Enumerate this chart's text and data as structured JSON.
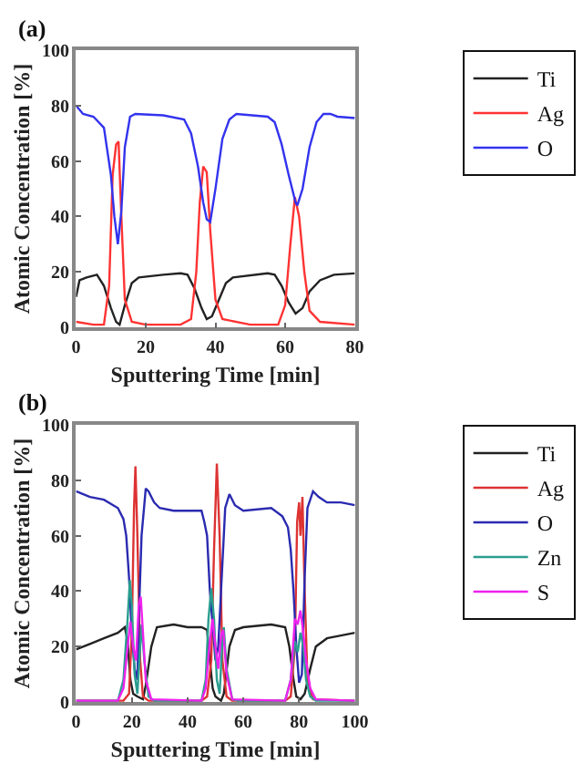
{
  "chart_data": [
    {
      "type": "line",
      "title": "(a)",
      "xlabel": "Sputtering Time [min]",
      "ylabel": "Atomic Concentration [%]",
      "xlim": [
        0,
        80
      ],
      "xticks": [
        0,
        20,
        40,
        60,
        80
      ],
      "ylim": [
        0,
        100
      ],
      "yticks": [
        0,
        20,
        40,
        60,
        80,
        100
      ],
      "grid": false,
      "legend": "top right",
      "series": [
        {
          "name": "Ti",
          "color": "#222222",
          "x": [
            0,
            1,
            3,
            6,
            8,
            10,
            11.5,
            12.5,
            14,
            16,
            18,
            25,
            30,
            32,
            34,
            36,
            37.5,
            39,
            41,
            43,
            45,
            55,
            57,
            59,
            61,
            63,
            65,
            67,
            70,
            74,
            80
          ],
          "values": [
            11,
            17,
            18,
            19,
            15,
            7,
            2,
            1,
            8,
            16,
            18,
            19,
            19.5,
            19,
            14,
            7,
            3,
            4,
            10,
            16,
            18,
            19.5,
            19,
            15,
            9,
            5,
            7,
            13,
            17,
            19,
            19.5
          ]
        },
        {
          "name": "Ag",
          "color": "#ff3333",
          "x": [
            0,
            5,
            8,
            9.5,
            10.5,
            11.5,
            12.2,
            13,
            14,
            16,
            20,
            30,
            33,
            34.5,
            35.5,
            36.5,
            37.5,
            38.5,
            40,
            42,
            50,
            58,
            60,
            61.5,
            62.8,
            64,
            65.5,
            67,
            70,
            80
          ],
          "values": [
            2,
            1,
            1,
            15,
            55,
            66,
            67,
            40,
            10,
            2,
            1,
            1,
            3,
            20,
            45,
            58,
            56,
            35,
            10,
            3,
            1,
            1,
            8,
            30,
            47,
            40,
            20,
            6,
            2,
            1
          ]
        },
        {
          "name": "O",
          "color": "#3333ee",
          "x": [
            0,
            2,
            5,
            8,
            10,
            11,
            12,
            13,
            14,
            15.5,
            17,
            25,
            31,
            33,
            35,
            36.5,
            37.5,
            38.5,
            40,
            42,
            44,
            46,
            55,
            57,
            59,
            61,
            63,
            63.5,
            65,
            67,
            69,
            71,
            73,
            75,
            80
          ],
          "values": [
            80,
            77,
            76,
            72,
            55,
            40,
            30,
            42,
            65,
            76,
            77,
            76.5,
            75,
            70,
            58,
            45,
            39,
            38,
            50,
            68,
            75,
            77,
            76,
            74,
            66,
            55,
            45,
            44,
            50,
            65,
            74,
            77,
            77,
            76,
            75.5
          ]
        }
      ]
    },
    {
      "type": "line",
      "title": "(b)",
      "xlabel": "Sputtering Time [min]",
      "ylabel": "Atomic Concentration [%]",
      "xlim": [
        0,
        100
      ],
      "xticks": [
        0,
        20,
        40,
        60,
        80,
        100
      ],
      "ylim": [
        0,
        100
      ],
      "yticks": [
        0,
        20,
        40,
        60,
        80,
        100
      ],
      "grid": false,
      "legend": "top right",
      "series": [
        {
          "name": "Ti",
          "color": "#222222",
          "x": [
            0,
            5,
            10,
            15,
            17.5,
            18.5,
            19.5,
            20.5,
            22,
            24,
            25,
            27,
            29,
            35,
            40,
            45,
            47,
            48,
            49,
            50,
            52,
            53,
            55,
            57,
            60,
            70,
            75,
            76.5,
            78,
            79,
            80.5,
            82,
            84,
            86,
            90,
            95,
            100
          ],
          "values": [
            19,
            21,
            23,
            25,
            27,
            22,
            8,
            3,
            2,
            1,
            6,
            20,
            27,
            28,
            27,
            27,
            26,
            15,
            5,
            2,
            0.5,
            3,
            20,
            26,
            27,
            28,
            27,
            20,
            8,
            2,
            1,
            3,
            12,
            20,
            23,
            24,
            25
          ]
        },
        {
          "name": "Ag",
          "color": "#dd3333",
          "x": [
            0,
            17,
            19,
            20,
            20.8,
            21.3,
            22,
            23,
            24,
            26,
            45,
            47,
            48.5,
            49.5,
            50.5,
            51.5,
            52.5,
            54,
            56,
            75,
            77,
            78.5,
            79.3,
            80,
            80.5,
            81.2,
            82,
            83,
            85,
            100
          ],
          "values": [
            0.5,
            0.5,
            3,
            25,
            70,
            85,
            60,
            15,
            2,
            0.5,
            0.5,
            2,
            15,
            55,
            86,
            60,
            15,
            2,
            0.5,
            0.5,
            2,
            20,
            65,
            72,
            60,
            74,
            40,
            8,
            1,
            0.5
          ]
        },
        {
          "name": "O",
          "color": "#2a2ab0",
          "x": [
            0,
            5,
            10,
            15,
            17,
            18,
            19,
            20,
            21,
            22,
            22.5,
            23.5,
            25,
            26,
            28,
            30,
            35,
            45,
            46,
            47,
            48,
            49,
            50,
            51,
            52,
            53.5,
            55,
            57,
            60,
            70,
            74,
            76,
            77,
            78,
            79,
            80,
            81,
            82,
            83,
            85,
            87,
            90,
            95,
            100
          ],
          "values": [
            76,
            74,
            73,
            70,
            66,
            60,
            45,
            25,
            12,
            8,
            30,
            60,
            77,
            76,
            72,
            70,
            69,
            69,
            65,
            60,
            40,
            28,
            15,
            20,
            40,
            70,
            75,
            71,
            69,
            70,
            67,
            63,
            55,
            40,
            20,
            7,
            10,
            45,
            70,
            76,
            74,
            72,
            72,
            71
          ]
        },
        {
          "name": "Zn",
          "color": "#2a9d8f",
          "x": [
            0,
            15,
            17,
            18.5,
            19.3,
            20,
            21,
            22,
            23,
            23.5,
            24.5,
            26,
            28,
            45,
            46.5,
            47.5,
            48.5,
            49.5,
            50.5,
            51.5,
            52.5,
            53,
            54,
            56,
            58,
            75,
            77,
            78.5,
            79.5,
            80.5,
            81.5,
            82.5,
            84,
            86,
            100
          ],
          "values": [
            0.5,
            0.5,
            8,
            30,
            44,
            35,
            10,
            3,
            20,
            28,
            15,
            2,
            0.5,
            0.5,
            8,
            30,
            41,
            30,
            8,
            3,
            22,
            27,
            12,
            1,
            0.5,
            0.5,
            8,
            22,
            18,
            25,
            20,
            8,
            2,
            0.5,
            0.5
          ]
        },
        {
          "name": "S",
          "color": "#ee22ee",
          "x": [
            0,
            15,
            17,
            18.5,
            19.5,
            20.5,
            21.5,
            22.5,
            23.2,
            24,
            25,
            27,
            45,
            46.5,
            48,
            49,
            50,
            51,
            52,
            52.8,
            54,
            56,
            75,
            77,
            78.5,
            79.5,
            80.5,
            81.5,
            82.5,
            84,
            86,
            100
          ],
          "values": [
            0.5,
            0.5,
            5,
            20,
            29,
            20,
            15,
            35,
            38,
            25,
            8,
            1,
            0.5,
            5,
            22,
            30,
            20,
            12,
            24,
            26,
            10,
            1,
            0.5,
            8,
            30,
            28,
            33,
            25,
            15,
            5,
            1,
            0.5
          ]
        }
      ]
    }
  ]
}
